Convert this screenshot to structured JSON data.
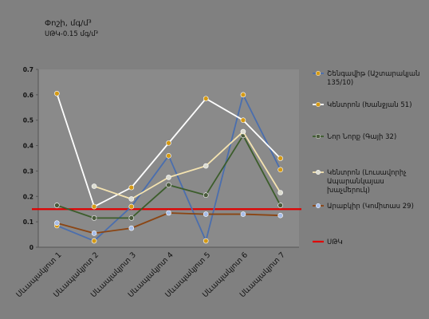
{
  "chart_data": {
    "type": "line",
    "title": "Փոշի, մգ/մ³",
    "subtitle": "ՍԹԿ-0.15 մգ/մ³",
    "categories": [
      "Սևապակյոտ 1",
      "Սևապակյոտ 2",
      "Սևապակյոտ 3",
      "Սևապակյոտ 4",
      "Սևապակյոտ 5",
      "Սևապակյոտ 6",
      "Սևապակյոտ 7"
    ],
    "ylim": [
      0,
      0.7
    ],
    "yticks": [
      "0",
      "0.1",
      "0.2",
      "0.3",
      "0.4",
      "0.5",
      "0.6",
      "0.7"
    ],
    "grid": false,
    "legend_position": "right",
    "series": [
      {
        "name": "Շենգավիթ (Աշտարակյան 135/10)",
        "line_color": "#4a6eae",
        "marker_color": "#d59a14",
        "values": [
          0.085,
          0.025,
          0.16,
          0.36,
          0.025,
          0.6,
          0.305
        ]
      },
      {
        "name": "Կենտրոն (Խանջյան 51)",
        "line_color": "#ffffff",
        "marker_color": "#d59a14",
        "values": [
          0.605,
          0.16,
          0.235,
          0.41,
          0.585,
          0.5,
          0.35
        ]
      },
      {
        "name": "Նոր Նորք (Գայի 32)",
        "line_color": "#3c5d2b",
        "marker_color": "#4a5a3c",
        "values": [
          0.165,
          0.115,
          0.115,
          0.245,
          0.205,
          0.44,
          0.165
        ]
      },
      {
        "name": "Կենտրոն (Լուսավորիչ Ապարանկայաս խաչմերուկ)",
        "line_color": "#f4e3b0",
        "marker_color": "#dcdcd0",
        "values": [
          null,
          0.24,
          0.19,
          0.275,
          0.32,
          0.455,
          0.215
        ]
      },
      {
        "name": "Արաբկիր (Կոմիտաս 29)",
        "line_color": "#8b4513",
        "marker_color": "#a7bde8",
        "values": [
          0.095,
          0.055,
          0.075,
          0.135,
          0.13,
          0.13,
          0.125
        ]
      }
    ],
    "threshold": {
      "name": "ՍԹԿ",
      "value": 0.15,
      "color": "#e00000"
    }
  }
}
